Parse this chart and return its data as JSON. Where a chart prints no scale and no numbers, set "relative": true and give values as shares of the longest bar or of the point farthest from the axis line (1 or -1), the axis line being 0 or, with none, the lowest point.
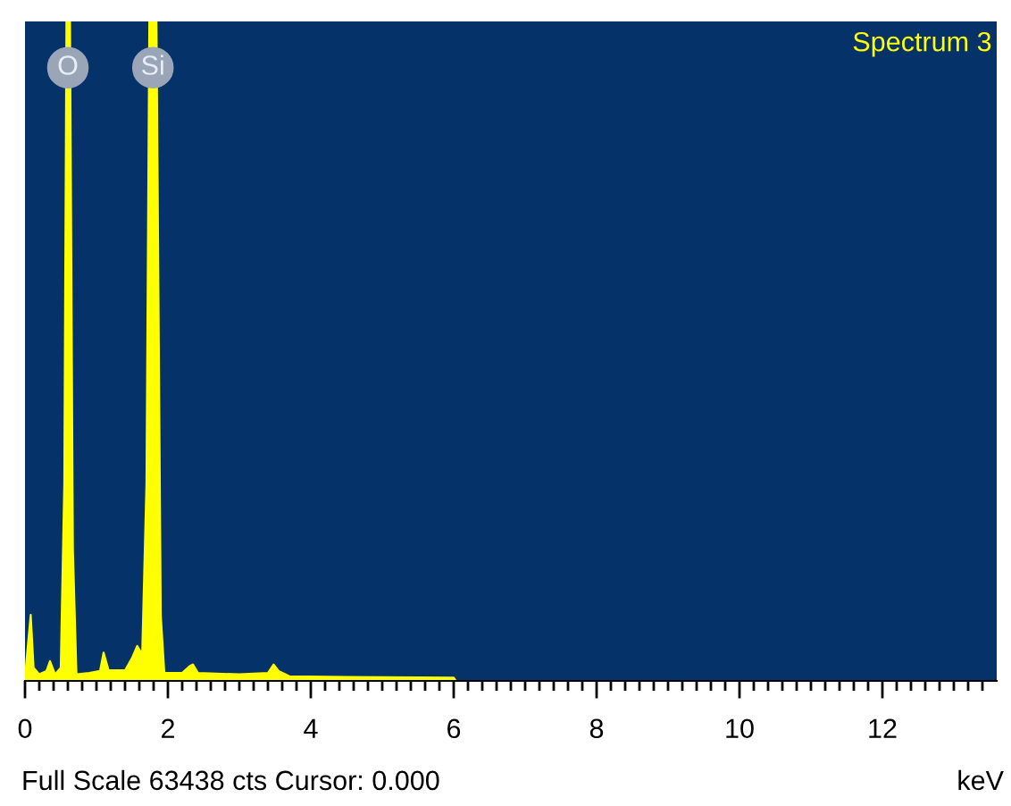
{
  "chart_data": {
    "type": "area",
    "title": "Spectrum 3",
    "xlabel": "keV",
    "relative": true,
    "color": "#ffff00",
    "annotations": [
      {
        "text": "O",
        "x": 0.6,
        "y": 0.93
      },
      {
        "text": "Si",
        "x": 1.79,
        "y": 0.93
      },
      "Full Scale 63438 cts Cursor: 0.000"
    ],
    "x": [
      0,
      0.02,
      0.08,
      0.12,
      0.2,
      0.3,
      0.35,
      0.42,
      0.5,
      0.55,
      0.58,
      0.63,
      0.67,
      0.72,
      0.9,
      1.05,
      1.1,
      1.17,
      1.4,
      1.5,
      1.57,
      1.64,
      1.7,
      1.74,
      1.84,
      1.9,
      1.95,
      2.2,
      2.3,
      2.35,
      2.42,
      3.0,
      3.4,
      3.48,
      3.55,
      3.7,
      4.5,
      6.0,
      6.03,
      13.6
    ],
    "values": [
      0,
      0.03,
      0.1,
      0.02,
      0.01,
      0.015,
      0.03,
      0.01,
      0.02,
      0.3,
      1,
      1,
      0.2,
      0.01,
      0.012,
      0.015,
      0.043,
      0.016,
      0.016,
      0.035,
      0.053,
      0.04,
      0.3,
      1,
      1,
      0.1,
      0.012,
      0.012,
      0.022,
      0.025,
      0.012,
      0.01,
      0.012,
      0.025,
      0.015,
      0.007,
      0.006,
      0.005,
      0,
      0
    ],
    "xlim": [
      0,
      13.6
    ],
    "xticks": [
      0,
      {
        "value": 0.2,
        "label": null
      },
      {
        "value": 0.4,
        "label": null
      },
      {
        "value": 0.6,
        "label": null
      },
      {
        "value": 0.8,
        "label": null
      },
      {
        "value": 1.0,
        "label": null
      },
      {
        "value": 1.2,
        "label": null
      },
      {
        "value": 1.4,
        "label": null
      },
      {
        "value": 1.6,
        "label": null
      },
      {
        "value": 1.8,
        "label": null
      },
      2,
      {
        "value": 2.2,
        "label": null
      },
      {
        "value": 2.4,
        "label": null
      },
      {
        "value": 2.6,
        "label": null
      },
      {
        "value": 2.8,
        "label": null
      },
      {
        "value": 3.0,
        "label": null
      },
      {
        "value": 3.2,
        "label": null
      },
      {
        "value": 3.4,
        "label": null
      },
      {
        "value": 3.6,
        "label": null
      },
      {
        "value": 3.8,
        "label": null
      },
      4,
      {
        "value": 4.2,
        "label": null
      },
      {
        "value": 4.4,
        "label": null
      },
      {
        "value": 4.6,
        "label": null
      },
      {
        "value": 4.8,
        "label": null
      },
      {
        "value": 5.0,
        "label": null
      },
      {
        "value": 5.2,
        "label": null
      },
      {
        "value": 5.4,
        "label": null
      },
      {
        "value": 5.6,
        "label": null
      },
      {
        "value": 5.8,
        "label": null
      },
      6,
      {
        "value": 6.2,
        "label": null
      },
      {
        "value": 6.4,
        "label": null
      },
      {
        "value": 6.6,
        "label": null
      },
      {
        "value": 6.8,
        "label": null
      },
      {
        "value": 7.0,
        "label": null
      },
      {
        "value": 7.2,
        "label": null
      },
      {
        "value": 7.4,
        "label": null
      },
      {
        "value": 7.6,
        "label": null
      },
      {
        "value": 7.8,
        "label": null
      },
      8,
      {
        "value": 8.2,
        "label": null
      },
      {
        "value": 8.4,
        "label": null
      },
      {
        "value": 8.6,
        "label": null
      },
      {
        "value": 8.8,
        "label": null
      },
      {
        "value": 9.0,
        "label": null
      },
      {
        "value": 9.2,
        "label": null
      },
      {
        "value": 9.4,
        "label": null
      },
      {
        "value": 9.6,
        "label": null
      },
      {
        "value": 9.8,
        "label": null
      },
      10,
      {
        "value": 10.2,
        "label": null
      },
      {
        "value": 10.4,
        "label": null
      },
      {
        "value": 10.6,
        "label": null
      },
      {
        "value": 10.8,
        "label": null
      },
      {
        "value": 11.0,
        "label": null
      },
      {
        "value": 11.2,
        "label": null
      },
      {
        "value": 11.4,
        "label": null
      },
      {
        "value": 11.6,
        "label": null
      },
      {
        "value": 11.8,
        "label": null
      },
      12,
      {
        "value": 12.2,
        "label": null
      },
      {
        "value": 12.4,
        "label": null
      },
      {
        "value": 12.6,
        "label": null
      },
      {
        "value": 12.8,
        "label": null
      },
      {
        "value": 13.0,
        "label": null
      },
      {
        "value": 13.2,
        "label": null
      },
      {
        "value": 13.4,
        "label": null
      }
    ],
    "grid": false,
    "legend": false
  }
}
